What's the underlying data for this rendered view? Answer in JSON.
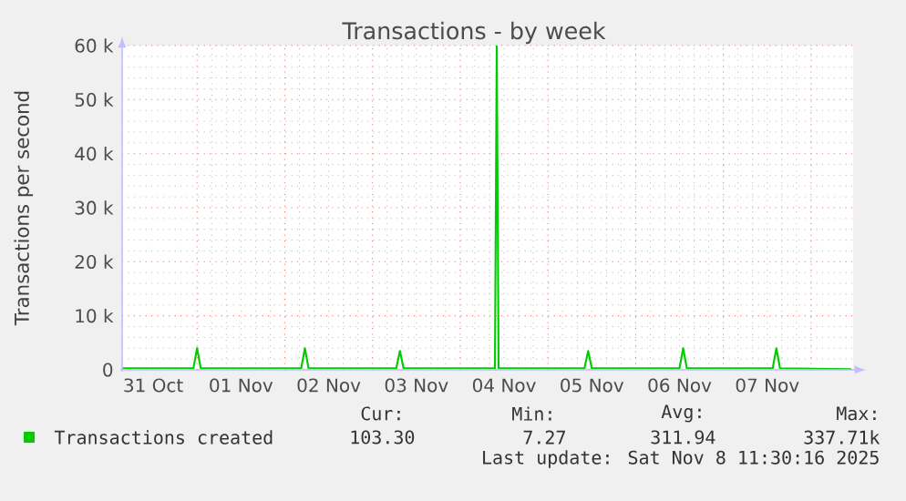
{
  "chart_data": {
    "type": "line",
    "title": "Transactions - by week",
    "ylabel": "Transactions per second",
    "xlim": [
      "2025-10-31T03:30",
      "2025-11-08T11:30"
    ],
    "ylim": [
      0,
      60000
    ],
    "yticks": [
      0,
      {
        "value": 10000,
        "label": "10 k"
      },
      {
        "value": 20000,
        "label": "20 k"
      },
      {
        "value": 30000,
        "label": "30 k"
      },
      {
        "value": 40000,
        "label": "40 k"
      },
      {
        "value": 50000,
        "label": "50 k"
      },
      {
        "value": 60000,
        "label": "60 k"
      }
    ],
    "xticks": [
      {
        "value": "2025-10-31T12:00",
        "label": "31 Oct"
      },
      {
        "value": "2025-11-01T00:00",
        "label": null
      },
      {
        "value": "2025-11-01T12:00",
        "label": "01 Nov"
      },
      {
        "value": "2025-11-02T00:00",
        "label": null
      },
      {
        "value": "2025-11-02T12:00",
        "label": "02 Nov"
      },
      {
        "value": "2025-11-03T00:00",
        "label": null
      },
      {
        "value": "2025-11-03T12:00",
        "label": "03 Nov"
      },
      {
        "value": "2025-11-04T00:00",
        "label": null
      },
      {
        "value": "2025-11-04T12:00",
        "label": "04 Nov"
      },
      {
        "value": "2025-11-05T00:00",
        "label": null
      },
      {
        "value": "2025-11-05T12:00",
        "label": "05 Nov"
      },
      {
        "value": "2025-11-06T00:00",
        "label": null
      },
      {
        "value": "2025-11-06T12:00",
        "label": "06 Nov"
      },
      {
        "value": "2025-11-07T00:00",
        "label": null
      },
      {
        "value": "2025-11-07T12:00",
        "label": "07 Nov"
      },
      {
        "value": "2025-11-08T00:00",
        "label": null
      }
    ],
    "grid": true,
    "legend": "bottom left",
    "marker": "none",
    "line_style": "solid",
    "series": [
      {
        "name": "Transactions created",
        "color": "#00cc00",
        "x": [
          "2025-10-31T03:30",
          "2025-10-31T23:00",
          "2025-11-01T00:00",
          "2025-11-01T01:00",
          "2025-11-02T04:30",
          "2025-11-02T05:30",
          "2025-11-02T06:30",
          "2025-11-03T06:30",
          "2025-11-03T07:30",
          "2025-11-03T08:30",
          "2025-11-04T09:30",
          "2025-11-04T10:00",
          "2025-11-04T10:30",
          "2025-11-05T10:00",
          "2025-11-05T11:00",
          "2025-11-05T12:00",
          "2025-11-06T12:00",
          "2025-11-06T13:00",
          "2025-11-06T14:00",
          "2025-11-07T13:30",
          "2025-11-07T14:30",
          "2025-11-07T15:30",
          "2025-11-08T11:00"
        ],
        "values": [
          300,
          300,
          4000,
          300,
          300,
          4000,
          300,
          300,
          3500,
          300,
          300,
          60000,
          300,
          300,
          3500,
          300,
          300,
          4000,
          300,
          300,
          4000,
          300,
          100
        ]
      }
    ],
    "annotations": [
      "Cur:",
      "Min:",
      "Avg:",
      "Max:",
      "103.30",
      "7.27",
      "311.94",
      "337.71k",
      "Last update: Sat Nov  8 11:30:16 2025"
    ]
  }
}
